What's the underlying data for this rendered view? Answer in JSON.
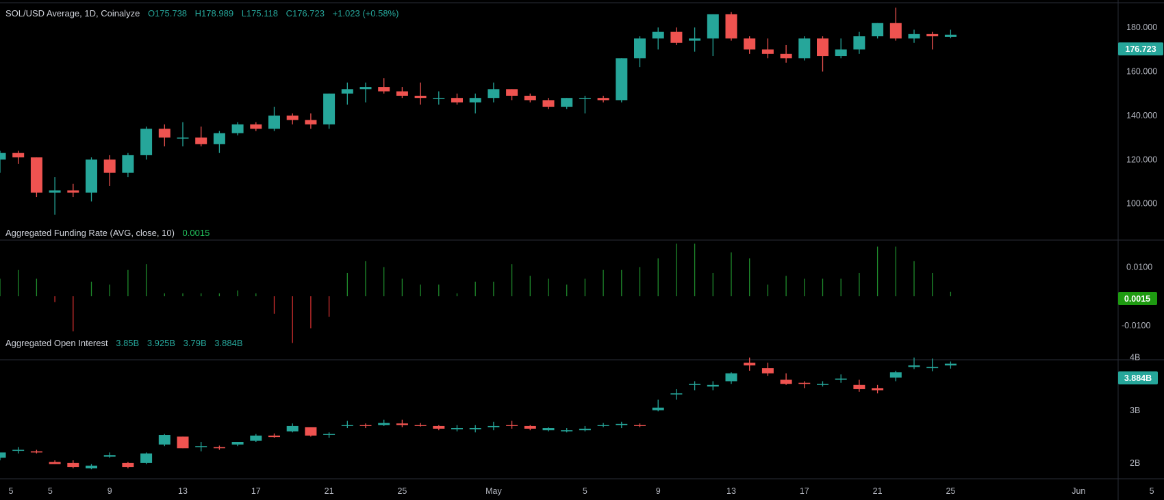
{
  "colors": {
    "up": "#26a69a",
    "down": "#ef5350",
    "funding": "#1f8c2c",
    "funding_neg": "#d32f2f",
    "label": "#d1d4dc",
    "muted": "#b2b5be",
    "tag_green": "#1e9a11"
  },
  "price_pane": {
    "title": "SOL/USD Average, 1D, Coinalyze",
    "o": "O175.738",
    "h": "H178.989",
    "l": "L175.118",
    "c": "C176.723",
    "chg": "+1.023 (+0.58%)",
    "last_tag": "176.723",
    "ticks": [
      "180.000",
      "160.000",
      "140.000",
      "120.000",
      "100.000"
    ]
  },
  "funding_pane": {
    "title": "Aggregated Funding Rate (AVG, close, 10)",
    "value": "0.0015",
    "last_tag": "0.0015",
    "ticks": [
      "0.0100",
      "-0.0100"
    ]
  },
  "oi_pane": {
    "title": "Aggregated Open Interest",
    "o": "3.85B",
    "h": "3.925B",
    "l": "3.79B",
    "c": "3.884B",
    "last_tag": "3.884B",
    "ticks": [
      "4B",
      "3B",
      "2B"
    ]
  },
  "x_ticks": [
    {
      "label": "5",
      "i": 1
    },
    {
      "label": "5",
      "i": 2
    },
    {
      "label": "9",
      "i": 6
    },
    {
      "label": "13",
      "i": 10
    },
    {
      "label": "17",
      "i": 14
    },
    {
      "label": "21",
      "i": 18
    },
    {
      "label": "25",
      "i": 22
    },
    {
      "label": "May",
      "i": 27
    },
    {
      "label": "5",
      "i": 32
    },
    {
      "label": "9",
      "i": 36
    },
    {
      "label": "13",
      "i": 40
    },
    {
      "label": "17",
      "i": 44
    },
    {
      "label": "21",
      "i": 48
    },
    {
      "label": "25",
      "i": 52
    },
    {
      "label": "Jun",
      "i": 59
    },
    {
      "label": "5",
      "i": 63
    }
  ],
  "chart_data": [
    {
      "type": "candlestick",
      "title": "SOL/USD Average, 1D, Coinalyze",
      "ylim": [
        85,
        190
      ],
      "start_date": "2024-04-05",
      "candles": [
        [
          120,
          124,
          114,
          123
        ],
        [
          123,
          124,
          118,
          121
        ],
        [
          121,
          121,
          103,
          105
        ],
        [
          105,
          112,
          95,
          106
        ],
        [
          106,
          109,
          103,
          105
        ],
        [
          105,
          121,
          101,
          120
        ],
        [
          120,
          122,
          108,
          114
        ],
        [
          114,
          123,
          112,
          122
        ],
        [
          122,
          135,
          120,
          134
        ],
        [
          134,
          136,
          126,
          130
        ],
        [
          130,
          137,
          126,
          130
        ],
        [
          130,
          135,
          126,
          127
        ],
        [
          127,
          133,
          123,
          132
        ],
        [
          132,
          137,
          131,
          136
        ],
        [
          136,
          137,
          133,
          134
        ],
        [
          134,
          144,
          133,
          140
        ],
        [
          140,
          141,
          136,
          138
        ],
        [
          138,
          141,
          134,
          136
        ],
        [
          136,
          150,
          134,
          150
        ],
        [
          150,
          155,
          145,
          152
        ],
        [
          152,
          155,
          146,
          153
        ],
        [
          153,
          157,
          150,
          151
        ],
        [
          151,
          153,
          148,
          149
        ],
        [
          149,
          155,
          145,
          148
        ],
        [
          148,
          151,
          145,
          148
        ],
        [
          148,
          150,
          145,
          146
        ],
        [
          146,
          150,
          141,
          148
        ],
        [
          148,
          155,
          146,
          152
        ],
        [
          152,
          152,
          147,
          149
        ],
        [
          149,
          150,
          146,
          147
        ],
        [
          147,
          148,
          143,
          144
        ],
        [
          144,
          148,
          143,
          148
        ],
        [
          148,
          149,
          141,
          148
        ],
        [
          148,
          149,
          146,
          147
        ],
        [
          147,
          166,
          146,
          166
        ],
        [
          166,
          176,
          162,
          175
        ],
        [
          175,
          180,
          170,
          178
        ],
        [
          178,
          180,
          172,
          173
        ],
        [
          174,
          180,
          169,
          175
        ],
        [
          175,
          186,
          167,
          186
        ],
        [
          186,
          187,
          174,
          175
        ],
        [
          175,
          176,
          168,
          170
        ],
        [
          170,
          175,
          166,
          168
        ],
        [
          168,
          172,
          164,
          166
        ],
        [
          166,
          176,
          165,
          175
        ],
        [
          175,
          176,
          160,
          167
        ],
        [
          167,
          175,
          166,
          170
        ],
        [
          170,
          178,
          168,
          176
        ],
        [
          176,
          182,
          175,
          182
        ],
        [
          182,
          189,
          174,
          175
        ],
        [
          175,
          179,
          173,
          177
        ],
        [
          177,
          178,
          170,
          176
        ],
        [
          175.738,
          178.989,
          175.118,
          176.723
        ]
      ]
    },
    {
      "type": "bar",
      "title": "Aggregated Funding Rate (AVG, close, 10)",
      "ylim": [
        -0.018,
        0.019
      ],
      "values": [
        0.006,
        0.009,
        0.006,
        -0.002,
        -0.012,
        0.005,
        0.004,
        0.009,
        0.011,
        0.001,
        0.001,
        0.001,
        0.001,
        0.002,
        0.001,
        -0.006,
        -0.016,
        -0.011,
        -0.007,
        0.008,
        0.012,
        0.01,
        0.006,
        0.004,
        0.004,
        0.001,
        0.005,
        0.005,
        0.011,
        0.007,
        0.006,
        0.004,
        0.006,
        0.009,
        0.009,
        0.01,
        0.013,
        0.018,
        0.018,
        0.008,
        0.015,
        0.013,
        0.004,
        0.007,
        0.006,
        0.006,
        0.006,
        0.008,
        0.017,
        0.017,
        0.012,
        0.008,
        0.0015
      ]
    },
    {
      "type": "candlestick",
      "title": "Aggregated Open Interest",
      "ylim": [
        1.7,
        4.1
      ],
      "candles": [
        [
          2.1,
          2.2,
          2.05,
          2.2
        ],
        [
          2.25,
          2.3,
          2.18,
          2.25
        ],
        [
          2.22,
          2.25,
          2.18,
          2.2
        ],
        [
          2.02,
          2.05,
          1.98,
          1.98
        ],
        [
          2.0,
          2.05,
          1.9,
          1.92
        ],
        [
          1.9,
          1.98,
          1.88,
          1.95
        ],
        [
          2.12,
          2.2,
          2.1,
          2.15
        ],
        [
          2.0,
          2.02,
          1.9,
          1.92
        ],
        [
          2.0,
          2.2,
          1.98,
          2.18
        ],
        [
          2.35,
          2.55,
          2.32,
          2.53
        ],
        [
          2.5,
          2.5,
          2.28,
          2.28
        ],
        [
          2.3,
          2.4,
          2.22,
          2.32
        ],
        [
          2.3,
          2.33,
          2.25,
          2.28
        ],
        [
          2.35,
          2.4,
          2.32,
          2.4
        ],
        [
          2.42,
          2.55,
          2.4,
          2.52
        ],
        [
          2.52,
          2.56,
          2.48,
          2.49
        ],
        [
          2.6,
          2.75,
          2.58,
          2.7
        ],
        [
          2.68,
          2.68,
          2.5,
          2.52
        ],
        [
          2.55,
          2.58,
          2.48,
          2.55
        ],
        [
          2.7,
          2.8,
          2.66,
          2.72
        ],
        [
          2.72,
          2.75,
          2.66,
          2.7
        ],
        [
          2.72,
          2.82,
          2.7,
          2.76
        ],
        [
          2.75,
          2.82,
          2.68,
          2.72
        ],
        [
          2.72,
          2.76,
          2.69,
          2.7
        ],
        [
          2.7,
          2.72,
          2.62,
          2.65
        ],
        [
          2.65,
          2.72,
          2.6,
          2.66
        ],
        [
          2.65,
          2.72,
          2.58,
          2.66
        ],
        [
          2.68,
          2.78,
          2.62,
          2.7
        ],
        [
          2.72,
          2.8,
          2.65,
          2.7
        ],
        [
          2.7,
          2.72,
          2.62,
          2.65
        ],
        [
          2.62,
          2.68,
          2.6,
          2.66
        ],
        [
          2.62,
          2.66,
          2.58,
          2.62
        ],
        [
          2.62,
          2.7,
          2.6,
          2.65
        ],
        [
          2.7,
          2.76,
          2.68,
          2.72
        ],
        [
          2.72,
          2.78,
          2.66,
          2.74
        ],
        [
          2.72,
          2.75,
          2.68,
          2.7
        ],
        [
          3.0,
          3.2,
          2.98,
          3.05
        ],
        [
          3.3,
          3.4,
          3.2,
          3.32
        ],
        [
          3.48,
          3.55,
          3.38,
          3.5
        ],
        [
          3.45,
          3.55,
          3.38,
          3.48
        ],
        [
          3.55,
          3.72,
          3.5,
          3.7
        ],
        [
          3.9,
          4.0,
          3.75,
          3.85
        ],
        [
          3.8,
          3.9,
          3.65,
          3.7
        ],
        [
          3.58,
          3.7,
          3.48,
          3.5
        ],
        [
          3.52,
          3.55,
          3.42,
          3.5
        ],
        [
          3.48,
          3.55,
          3.45,
          3.5
        ],
        [
          3.6,
          3.68,
          3.52,
          3.6
        ],
        [
          3.48,
          3.58,
          3.35,
          3.4
        ],
        [
          3.42,
          3.48,
          3.32,
          3.38
        ],
        [
          3.62,
          3.75,
          3.55,
          3.72
        ],
        [
          3.82,
          4.0,
          3.78,
          3.85
        ],
        [
          3.8,
          3.98,
          3.74,
          3.82
        ],
        [
          3.85,
          3.925,
          3.79,
          3.884
        ]
      ]
    }
  ]
}
